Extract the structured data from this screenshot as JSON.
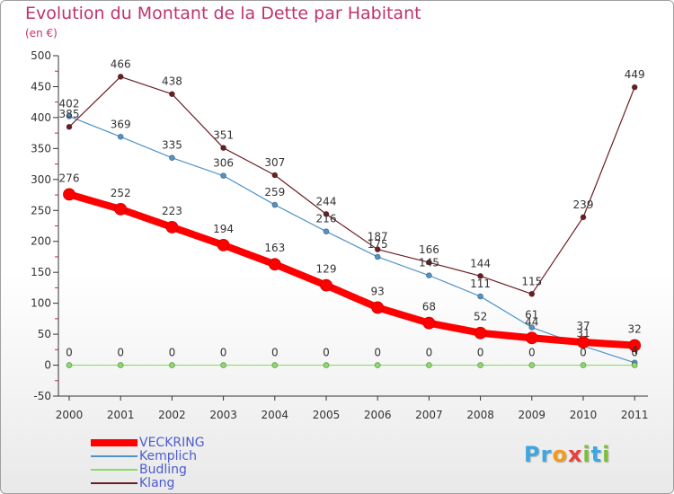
{
  "header": {
    "title": "Evolution du Montant de la Dette par Habitant",
    "unit": "(en €)"
  },
  "logo": {
    "letters": [
      "P",
      "r",
      "o",
      "x",
      "i",
      "t",
      "i"
    ],
    "colors": [
      "#3fa7e0",
      "#3fa7e0",
      "#f39a1e",
      "#e8403a",
      "#7bbf3a",
      "#3fa7e0",
      "#7bbf3a"
    ]
  },
  "chart_data": {
    "type": "line",
    "title": "Evolution du Montant de la Dette par Habitant",
    "subtitle": "(en €)",
    "x": [
      "2000",
      "2001",
      "2002",
      "2003",
      "2004",
      "2005",
      "2006",
      "2007",
      "2008",
      "2009",
      "2010",
      "2011"
    ],
    "y_ticks": [
      "-50",
      "0",
      "50",
      "100",
      "150",
      "200",
      "250",
      "300",
      "350",
      "400",
      "450",
      "500"
    ],
    "ylim": [
      -50,
      500
    ],
    "grid": false,
    "legend_position": "bottom-left",
    "series": [
      {
        "name": "VECKRING",
        "color": "#ff0000",
        "values": [
          276,
          252,
          223,
          194,
          163,
          129,
          93,
          68,
          52,
          44,
          37,
          32
        ],
        "labels": [
          "276",
          "252",
          "223",
          "194",
          "163",
          "129",
          "93",
          "68",
          "52",
          "",
          "",
          "32"
        ]
      },
      {
        "name": "Kemplich",
        "color": "#4f93c8",
        "values": [
          402,
          369,
          335,
          306,
          259,
          216,
          175,
          145,
          111,
          61,
          31,
          4
        ],
        "labels": [
          "402",
          "369",
          "335",
          "306",
          "259",
          "216",
          "175",
          "145",
          "111",
          "61",
          "31",
          "4"
        ]
      },
      {
        "name": "Budling",
        "color": "#88dd66",
        "values": [
          0,
          0,
          0,
          0,
          0,
          0,
          0,
          0,
          0,
          0,
          0,
          0
        ],
        "labels": [
          "0",
          "0",
          "0",
          "0",
          "0",
          "0",
          "0",
          "0",
          "0",
          "0",
          "0",
          "0"
        ]
      },
      {
        "name": "Klang",
        "color": "#6b1e22",
        "values": [
          385,
          466,
          438,
          351,
          307,
          244,
          187,
          166,
          144,
          115,
          239,
          449
        ],
        "labels": [
          "385",
          "466",
          "438",
          "351",
          "307",
          "244",
          "187",
          "166",
          "144",
          "115",
          "239",
          "449"
        ]
      }
    ],
    "annotations": [
      "44",
      "37"
    ]
  }
}
